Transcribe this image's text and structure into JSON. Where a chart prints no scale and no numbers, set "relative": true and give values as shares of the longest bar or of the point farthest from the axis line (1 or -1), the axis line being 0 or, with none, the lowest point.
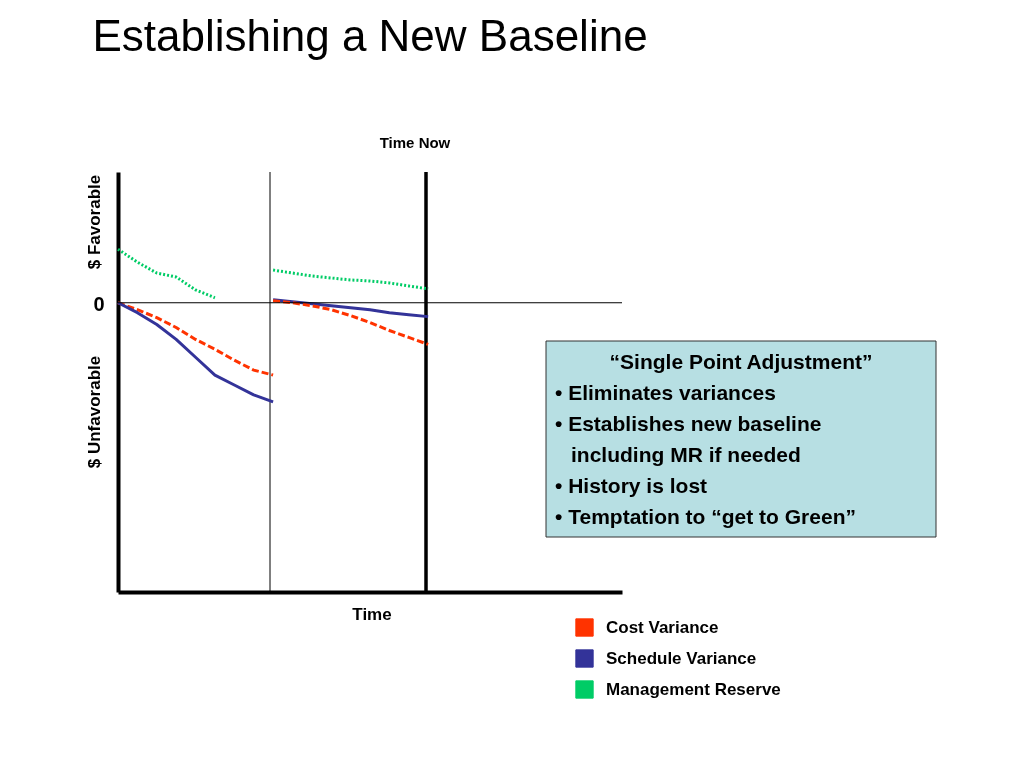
{
  "chart_data": {
    "type": "line",
    "title": "Establishing a New Baseline",
    "relative": true,
    "tick_labels": false,
    "legend": "bottom right",
    "categories": [
      null,
      null,
      null,
      null,
      null,
      null,
      null,
      null,
      null,
      null,
      null,
      null,
      null,
      null,
      null,
      null,
      null,
      null,
      null,
      null,
      null,
      null,
      null,
      null,
      null,
      null,
      null
    ],
    "series": [
      {
        "name": "Cost Variance",
        "color": "#ff3300",
        "line_style": "dashed",
        "values": [
          0,
          -0.07,
          -0.15,
          -0.25,
          -0.37,
          -0.47,
          -0.58,
          -0.68,
          -0.73,
          null,
          null,
          null,
          null,
          null,
          null,
          null,
          null,
          null,
          null,
          null,
          null,
          null,
          null,
          null,
          null,
          null,
          null
        ]
      },
      {
        "name": "Schedule Variance",
        "color": "#333399",
        "line_style": "solid",
        "values": [
          0,
          -0.1,
          -0.22,
          -0.37,
          -0.55,
          -0.73,
          -0.83,
          -0.93,
          -1,
          null,
          null,
          null,
          null,
          null,
          null,
          null,
          null,
          null,
          null,
          null,
          null,
          null,
          null,
          null,
          null,
          null,
          null
        ]
      },
      {
        "name": "Management Reserve",
        "color": "#00cc66",
        "line_style": "dotted",
        "values": [
          0.54,
          0.41,
          0.3,
          0.26,
          0.13,
          0.05,
          null,
          null,
          null,
          null,
          null,
          null,
          null,
          null,
          null,
          null,
          null,
          null,
          null,
          null,
          null,
          null,
          null,
          null,
          null,
          null,
          null
        ]
      },
      {
        "color": "#ff3300",
        "line_style": "dashed",
        "values": [
          null,
          null,
          null,
          null,
          null,
          null,
          null,
          null,
          0.02,
          0,
          -0.03,
          -0.07,
          -0.13,
          -0.2,
          -0.28,
          -0.35,
          -0.42,
          null,
          null,
          null,
          null,
          null,
          null,
          null,
          null,
          null,
          null
        ]
      },
      {
        "color": "#333399",
        "line_style": "solid",
        "values": [
          null,
          null,
          null,
          null,
          null,
          null,
          null,
          null,
          0.03,
          0.01,
          -0.01,
          -0.03,
          -0.05,
          -0.07,
          -0.1,
          -0.12,
          -0.14,
          null,
          null,
          null,
          null,
          null,
          null,
          null,
          null,
          null,
          null
        ]
      },
      {
        "color": "#00cc66",
        "line_style": "dotted",
        "values": [
          null,
          null,
          null,
          null,
          null,
          null,
          null,
          null,
          0.33,
          0.3,
          0.27,
          0.25,
          0.23,
          0.22,
          0.2,
          0.17,
          0.14,
          null,
          null,
          null,
          null,
          null,
          null,
          null,
          null,
          null,
          null
        ]
      }
    ],
    "annotations": [
      "0",
      "Time Now",
      "$ Favorable",
      "$ Unfavorable",
      "Time",
      "“Single Point Adjustment”\n• Eliminates variances\n• Establishes new baseline\n  including MR if needed\n• History is lost\n• Temptation to “get to Green”"
    ]
  }
}
